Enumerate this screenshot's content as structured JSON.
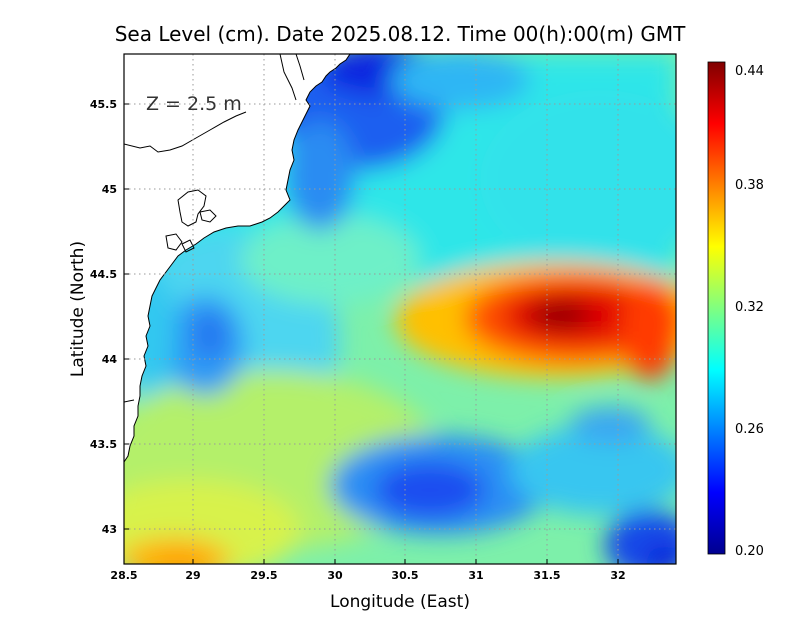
{
  "title": "Sea Level (cm). Date 2025.08.12. Time 00(h):00(m) GMT",
  "annotation": "Z = 2.5 m",
  "colorbar": {
    "ticks": [
      "0.44",
      "0.38",
      "0.32",
      "0.26",
      "0.20"
    ],
    "colors": [
      "#00008f",
      "#0000ff",
      "#0080ff",
      "#00ffff",
      "#80ff80",
      "#ffff00",
      "#ff8000",
      "#ff0000",
      "#800000"
    ]
  },
  "chart_data": {
    "type": "heatmap",
    "title": "Sea Level (cm). Date 2025.08.12. Time 00(h):00(m) GMT",
    "xlabel": "Longitude (East)",
    "ylabel": "Latitude (North)",
    "xlim": [
      28.5,
      32.4
    ],
    "ylim": [
      42.8,
      45.8
    ],
    "x_ticks": [
      "28.5",
      "29",
      "29.5",
      "30",
      "30.5",
      "31",
      "31.5",
      "32"
    ],
    "y_ticks": [
      "43",
      "43.5",
      "44",
      "44.5",
      "45",
      "45.5"
    ],
    "colorbar_range": [
      0.2,
      0.44
    ],
    "grid": true,
    "features": [
      {
        "feature": "maximum",
        "lon": 31.5,
        "lat": 44.25,
        "value": 0.44
      },
      {
        "feature": "high tongue",
        "lon": 31.0,
        "lat": 44.25,
        "value": 0.36
      },
      {
        "feature": "minimum",
        "lon": 30.1,
        "lat": 45.65,
        "value": 0.2
      },
      {
        "feature": "minimum",
        "lon": 30.6,
        "lat": 43.2,
        "value": 0.24
      },
      {
        "feature": "minimum",
        "lon": 29.15,
        "lat": 44.1,
        "value": 0.25
      },
      {
        "feature": "local high",
        "lon": 28.9,
        "lat": 42.85,
        "value": 0.37
      },
      {
        "feature": "minimum",
        "lon": 32.3,
        "lat": 42.95,
        "value": 0.22
      }
    ]
  }
}
